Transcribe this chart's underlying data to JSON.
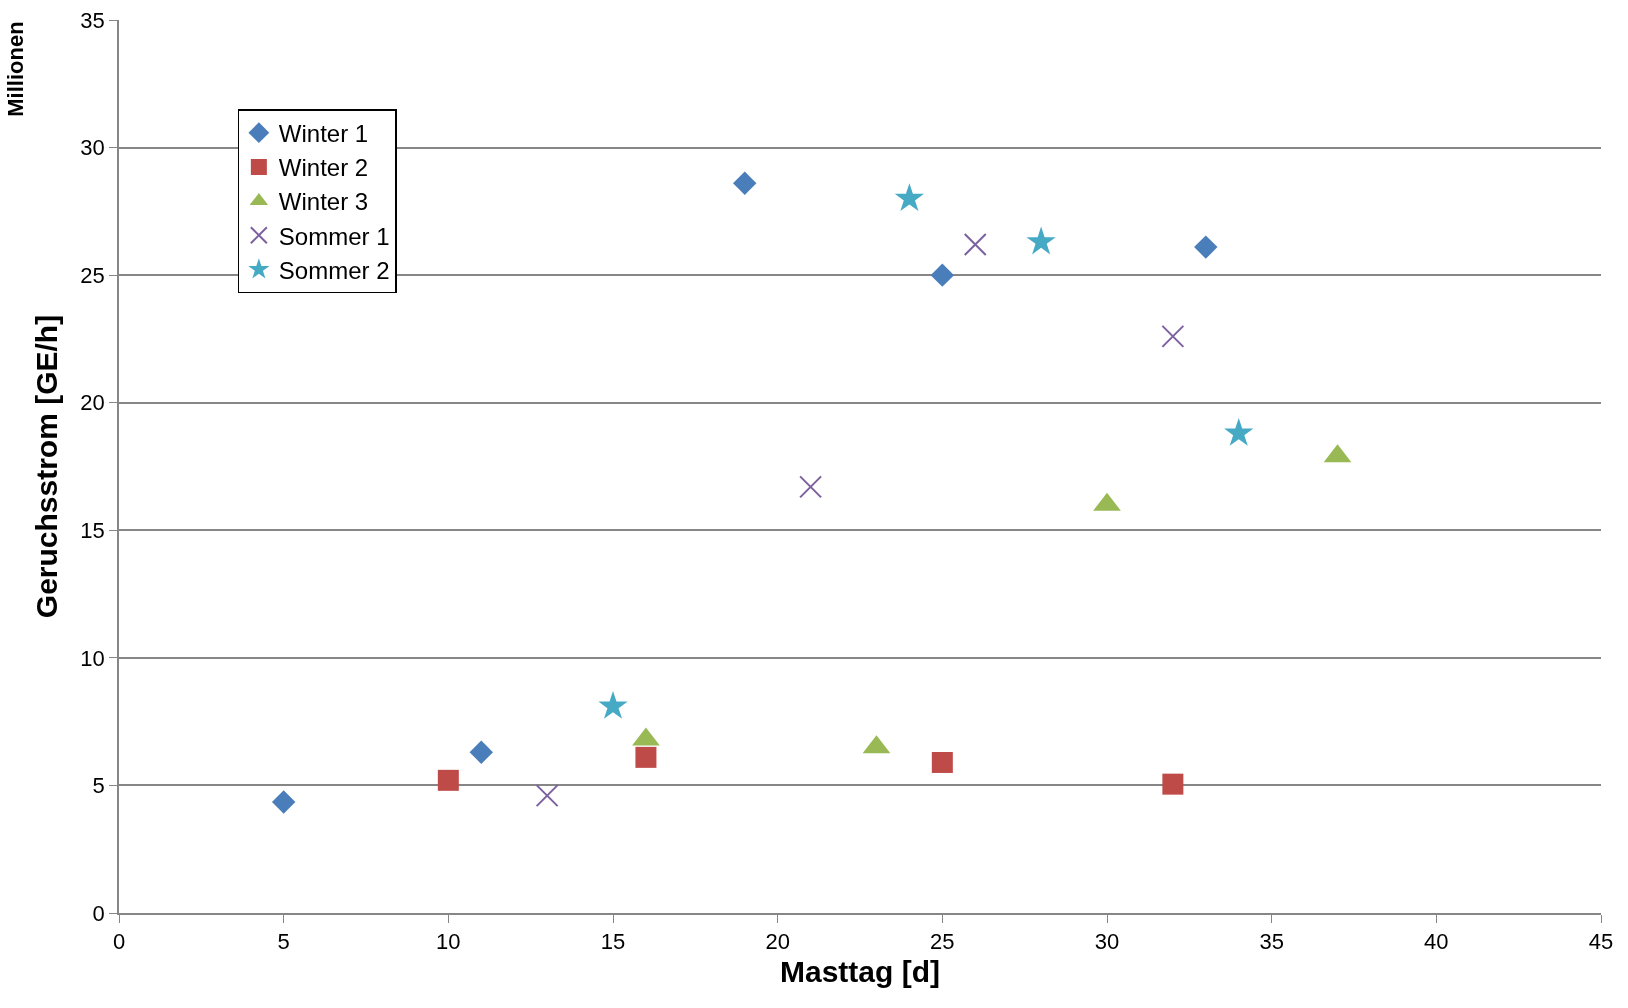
{
  "chart_data": {
    "type": "scatter",
    "xlabel": "Masttag [d]",
    "ylabel": "Geruchsstrom [GE/h]",
    "annotations": [
      "Millionen"
    ],
    "xlim": [
      0,
      45
    ],
    "xticks": [
      0,
      5,
      10,
      15,
      20,
      25,
      30,
      35,
      40,
      45
    ],
    "ylim": [
      0,
      35
    ],
    "yticks": [
      0,
      5,
      10,
      15,
      20,
      25,
      30,
      35
    ],
    "grid": "y",
    "legend": "top left",
    "series": [
      {
        "name": "Winter 1",
        "color": "#4a7ebb",
        "marker": "diamond",
        "x": [
          5,
          11,
          19,
          25,
          33
        ],
        "values": [
          4.35,
          6.3,
          28.6,
          25.0,
          26.1
        ]
      },
      {
        "name": "Winter 2",
        "color": "#be4b48",
        "marker": "square",
        "x": [
          10,
          16,
          25,
          32
        ],
        "values": [
          5.2,
          6.1,
          5.9,
          5.05
        ]
      },
      {
        "name": "Winter 3",
        "color": "#98b954",
        "marker": "triangle",
        "x": [
          16,
          23,
          30,
          37
        ],
        "values": [
          6.8,
          6.5,
          16.0,
          17.9
        ]
      },
      {
        "name": "Sommer 1",
        "color": "#7d60a0",
        "marker": "cross",
        "x": [
          13,
          21,
          26,
          32
        ],
        "values": [
          4.6,
          16.7,
          26.2,
          22.6
        ]
      },
      {
        "name": "Sommer 2",
        "color": "#46aac5",
        "marker": "star",
        "x": [
          15,
          24,
          28,
          34
        ],
        "values": [
          8.1,
          28.0,
          26.3,
          18.8
        ]
      }
    ]
  }
}
